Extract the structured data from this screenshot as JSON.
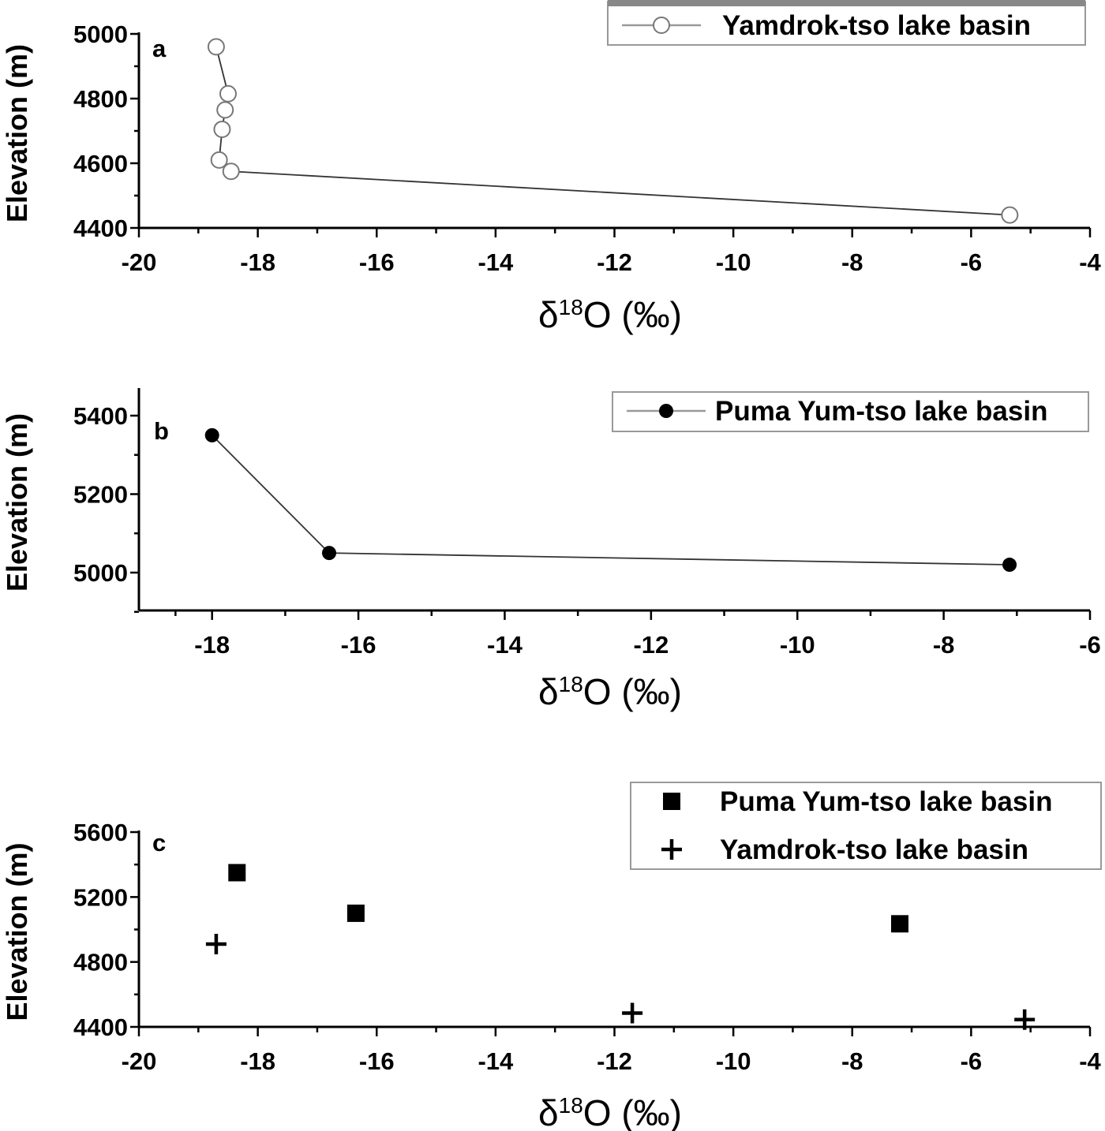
{
  "chart_data": [
    {
      "panel": "a",
      "type": "line",
      "xlabel": "δ18O (‰)",
      "ylabel": "Elevation (m)",
      "xlim": [
        -20,
        -4
      ],
      "ylim": [
        4400,
        5000
      ],
      "xticks": [
        -20,
        -18,
        -16,
        -14,
        -12,
        -10,
        -8,
        -6,
        -4
      ],
      "yticks": [
        4400,
        4600,
        4800,
        5000
      ],
      "xtick_labels": [
        "-20",
        "-18",
        "-16",
        "-14",
        "-12",
        "-10",
        "-8",
        "-6",
        "-4"
      ],
      "ytick_labels": [
        "4400",
        "4600",
        "4800",
        "5000"
      ],
      "legend_position": "top-right",
      "series": [
        {
          "name": "Yamdrok-tso lake basin",
          "marker": "open-circle",
          "x": [
            -18.7,
            -18.5,
            -18.55,
            -18.6,
            -18.65,
            -18.45,
            -5.35
          ],
          "y": [
            4960,
            4815,
            4765,
            4705,
            4610,
            4575,
            4440
          ]
        }
      ]
    },
    {
      "panel": "b",
      "type": "line",
      "xlabel": "δ18O (‰)",
      "ylabel": "Elevation (m)",
      "xlim": [
        -19,
        -6
      ],
      "ylim": [
        4900,
        5400
      ],
      "xticks": [
        -18,
        -16,
        -14,
        -12,
        -10,
        -8,
        -6
      ],
      "yticks": [
        5000,
        5200,
        5400
      ],
      "xtick_labels": [
        "-18",
        "-16",
        "-14",
        "-12",
        "-10",
        "-8",
        "-6"
      ],
      "ytick_labels": [
        "5000",
        "5200",
        "5400"
      ],
      "legend_position": "top-right",
      "series": [
        {
          "name": "Puma Yum-tso lake basin",
          "marker": "filled-circle",
          "x": [
            -18.0,
            -16.4,
            -7.1
          ],
          "y": [
            5350,
            5050,
            5020
          ]
        }
      ]
    },
    {
      "panel": "c",
      "type": "scatter",
      "xlabel": "δ18O (‰)",
      "ylabel": "Elevation (m)",
      "xlim": [
        -20,
        -4
      ],
      "ylim": [
        4400,
        5600
      ],
      "xticks": [
        -20,
        -18,
        -16,
        -14,
        -12,
        -10,
        -8,
        -6,
        -4
      ],
      "yticks": [
        4400,
        4800,
        5200,
        5600
      ],
      "xtick_labels": [
        "-20",
        "-18",
        "-16",
        "-14",
        "-12",
        "-10",
        "-8",
        "-6",
        "-4"
      ],
      "ytick_labels": [
        "4400",
        "4800",
        "5200",
        "5600"
      ],
      "legend_position": "top-right",
      "series": [
        {
          "name": "Puma Yum-tso lake basin",
          "marker": "filled-square",
          "x": [
            -18.35,
            -16.35,
            -7.2
          ],
          "y": [
            5350,
            5100,
            5035
          ]
        },
        {
          "name": "Yamdrok-tso lake basin",
          "marker": "plus",
          "x": [
            -18.7,
            -11.7,
            -5.1
          ],
          "y": [
            4910,
            4485,
            4445
          ]
        }
      ]
    }
  ]
}
